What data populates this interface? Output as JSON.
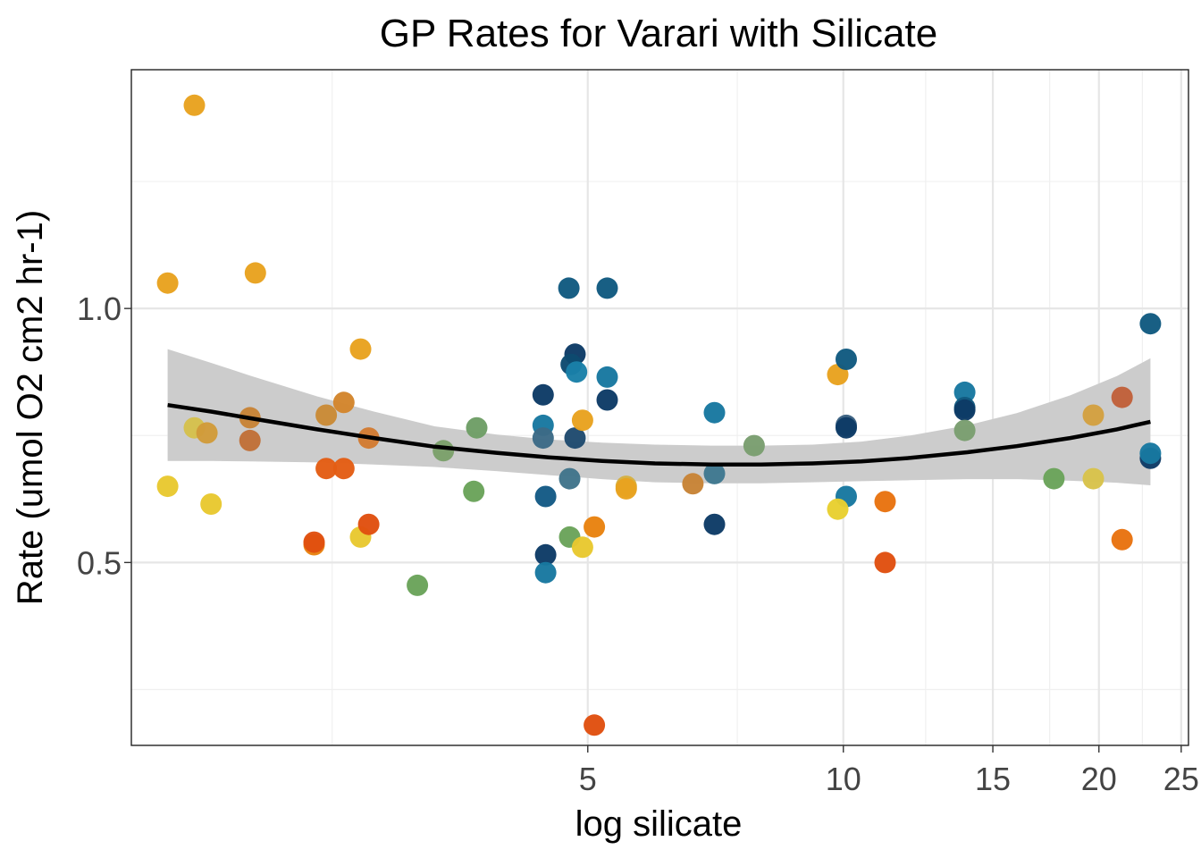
{
  "chart_data": {
    "type": "scatter",
    "title": "GP Rates for Varari with Silicate",
    "xlabel": "log silicate",
    "ylabel": "Rate (umol O2 cm2 hr-1)",
    "x_scale": "log10",
    "xlim": [
      1.45,
      25.5
    ],
    "ylim": [
      0.14,
      1.47
    ],
    "x_major_ticks": [
      5,
      10,
      15,
      20,
      25
    ],
    "x_tick_labels": [
      "5",
      "10",
      "15",
      "20",
      "25"
    ],
    "x_unlabeled_gridlines": [
      2.5,
      7.5,
      12.5,
      17.5,
      22.5
    ],
    "y_major_ticks": [
      0.5,
      1.0
    ],
    "y_tick_labels": [
      "0.5",
      "1.0"
    ],
    "y_minor_gridlines": [
      0.25,
      0.75,
      1.25
    ],
    "grid": true,
    "legend": "none",
    "points": [
      {
        "x": 1.72,
        "y": 1.4,
        "color": "#e8a21f"
      },
      {
        "x": 1.6,
        "y": 1.05,
        "color": "#e8a21f"
      },
      {
        "x": 2.03,
        "y": 1.07,
        "color": "#e8a21f"
      },
      {
        "x": 1.72,
        "y": 0.765,
        "color": "#d5c04c"
      },
      {
        "x": 1.6,
        "y": 0.65,
        "color": "#e8c830"
      },
      {
        "x": 1.78,
        "y": 0.755,
        "color": "#d19b3a"
      },
      {
        "x": 1.8,
        "y": 0.615,
        "color": "#e8c830"
      },
      {
        "x": 2.0,
        "y": 0.785,
        "color": "#c78336"
      },
      {
        "x": 2.0,
        "y": 0.74,
        "color": "#c07038"
      },
      {
        "x": 2.46,
        "y": 0.79,
        "color": "#c98a36"
      },
      {
        "x": 2.58,
        "y": 0.815,
        "color": "#d3852c"
      },
      {
        "x": 2.7,
        "y": 0.92,
        "color": "#e8a21f"
      },
      {
        "x": 2.76,
        "y": 0.745,
        "color": "#d27b32"
      },
      {
        "x": 2.46,
        "y": 0.685,
        "color": "#e35d14"
      },
      {
        "x": 2.58,
        "y": 0.685,
        "color": "#e35d14"
      },
      {
        "x": 2.38,
        "y": 0.535,
        "color": "#e8820f"
      },
      {
        "x": 2.38,
        "y": 0.54,
        "color": "#e05010"
      },
      {
        "x": 2.7,
        "y": 0.55,
        "color": "#e8c830"
      },
      {
        "x": 2.76,
        "y": 0.575,
        "color": "#e05010"
      },
      {
        "x": 3.15,
        "y": 0.455,
        "color": "#6aa35a"
      },
      {
        "x": 3.38,
        "y": 0.72,
        "color": "#7ba06a"
      },
      {
        "x": 3.7,
        "y": 0.765,
        "color": "#6e9e66"
      },
      {
        "x": 3.67,
        "y": 0.64,
        "color": "#6aa35a"
      },
      {
        "x": 4.43,
        "y": 0.83,
        "color": "#0d3b66"
      },
      {
        "x": 4.43,
        "y": 0.77,
        "color": "#1878a0"
      },
      {
        "x": 4.43,
        "y": 0.745,
        "color": "#3c6a86"
      },
      {
        "x": 4.46,
        "y": 0.63,
        "color": "#145a85"
      },
      {
        "x": 4.46,
        "y": 0.515,
        "color": "#0d3b66"
      },
      {
        "x": 4.46,
        "y": 0.48,
        "color": "#1878a0"
      },
      {
        "x": 4.75,
        "y": 1.04,
        "color": "#115a80"
      },
      {
        "x": 4.83,
        "y": 0.91,
        "color": "#0d3b66"
      },
      {
        "x": 4.78,
        "y": 0.89,
        "color": "#0d4a70"
      },
      {
        "x": 4.85,
        "y": 0.875,
        "color": "#1a80a8"
      },
      {
        "x": 4.83,
        "y": 0.745,
        "color": "#1f4a6e"
      },
      {
        "x": 4.76,
        "y": 0.665,
        "color": "#40748a"
      },
      {
        "x": 4.76,
        "y": 0.55,
        "color": "#6aa35a"
      },
      {
        "x": 4.93,
        "y": 0.78,
        "color": "#e8a21f"
      },
      {
        "x": 4.93,
        "y": 0.53,
        "color": "#e8c830"
      },
      {
        "x": 5.09,
        "y": 0.57,
        "color": "#e8820f"
      },
      {
        "x": 5.09,
        "y": 0.18,
        "color": "#e05010"
      },
      {
        "x": 5.27,
        "y": 1.04,
        "color": "#115a80"
      },
      {
        "x": 5.27,
        "y": 0.865,
        "color": "#1878a0"
      },
      {
        "x": 5.27,
        "y": 0.82,
        "color": "#0d3b66"
      },
      {
        "x": 5.55,
        "y": 0.65,
        "color": "#d5b040"
      },
      {
        "x": 5.55,
        "y": 0.645,
        "color": "#e8a21f"
      },
      {
        "x": 6.65,
        "y": 0.655,
        "color": "#c78336"
      },
      {
        "x": 7.05,
        "y": 0.795,
        "color": "#1878a0"
      },
      {
        "x": 7.05,
        "y": 0.675,
        "color": "#3f7890"
      },
      {
        "x": 7.05,
        "y": 0.575,
        "color": "#0d3b66"
      },
      {
        "x": 7.85,
        "y": 0.73,
        "color": "#7a9e70"
      },
      {
        "x": 9.85,
        "y": 0.87,
        "color": "#e8a21f"
      },
      {
        "x": 10.08,
        "y": 0.9,
        "color": "#115a80"
      },
      {
        "x": 10.08,
        "y": 0.77,
        "color": "#3a6080"
      },
      {
        "x": 10.08,
        "y": 0.765,
        "color": "#0d3b66"
      },
      {
        "x": 10.08,
        "y": 0.63,
        "color": "#1878a0"
      },
      {
        "x": 9.85,
        "y": 0.605,
        "color": "#e8d030"
      },
      {
        "x": 11.2,
        "y": 0.62,
        "color": "#e8730f"
      },
      {
        "x": 11.2,
        "y": 0.5,
        "color": "#e05010"
      },
      {
        "x": 13.9,
        "y": 0.835,
        "color": "#1878a0"
      },
      {
        "x": 13.9,
        "y": 0.805,
        "color": "#115a80"
      },
      {
        "x": 13.9,
        "y": 0.8,
        "color": "#0d3b66"
      },
      {
        "x": 13.9,
        "y": 0.76,
        "color": "#7a9e70"
      },
      {
        "x": 17.7,
        "y": 0.665,
        "color": "#6aa35a"
      },
      {
        "x": 19.7,
        "y": 0.79,
        "color": "#d3a040"
      },
      {
        "x": 19.7,
        "y": 0.665,
        "color": "#d8c24a"
      },
      {
        "x": 21.3,
        "y": 0.825,
        "color": "#c0603a"
      },
      {
        "x": 21.3,
        "y": 0.545,
        "color": "#e8730f"
      },
      {
        "x": 23.0,
        "y": 0.97,
        "color": "#115a80"
      },
      {
        "x": 23.0,
        "y": 0.705,
        "color": "#0d3b66"
      },
      {
        "x": 23.0,
        "y": 0.715,
        "color": "#1878a0"
      }
    ],
    "smooth": {
      "x": [
        1.6,
        1.8,
        2.0,
        2.4,
        2.8,
        3.3,
        3.9,
        4.5,
        5.2,
        6.0,
        7.0,
        8.0,
        9.2,
        10.5,
        12.0,
        14.0,
        16.0,
        18.5,
        21.0,
        23.0
      ],
      "y": [
        0.81,
        0.797,
        0.784,
        0.762,
        0.745,
        0.728,
        0.716,
        0.707,
        0.7,
        0.695,
        0.693,
        0.693,
        0.695,
        0.699,
        0.706,
        0.717,
        0.729,
        0.745,
        0.762,
        0.777
      ],
      "lower": [
        0.7,
        0.7,
        0.699,
        0.697,
        0.693,
        0.688,
        0.68,
        0.672,
        0.664,
        0.658,
        0.656,
        0.656,
        0.658,
        0.66,
        0.662,
        0.664,
        0.664,
        0.661,
        0.657,
        0.652
      ],
      "upper": [
        0.92,
        0.893,
        0.868,
        0.827,
        0.797,
        0.768,
        0.752,
        0.742,
        0.736,
        0.732,
        0.73,
        0.73,
        0.732,
        0.738,
        0.75,
        0.77,
        0.794,
        0.829,
        0.867,
        0.902
      ],
      "line_color": "#000000",
      "ribbon_color": "#cccccc"
    }
  }
}
